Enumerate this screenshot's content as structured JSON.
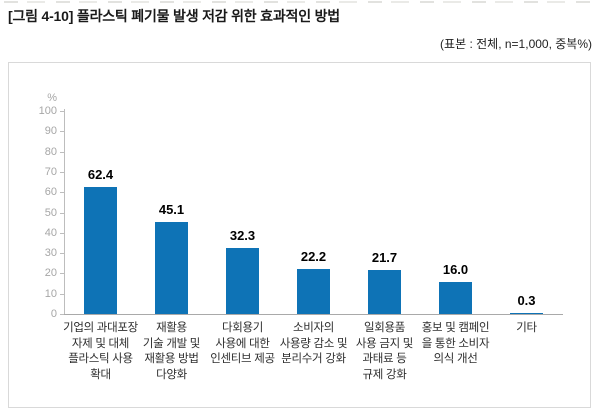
{
  "figure": {
    "title": "[그림 4-10] 플라스틱 폐기물 발생 저감 위한 효과적인 방법",
    "subtitle": "(표본 : 전체, n=1,000, 중복%)"
  },
  "chart_data": {
    "type": "bar",
    "title": "",
    "xlabel": "",
    "ylabel": "%",
    "ylim": [
      0,
      100
    ],
    "ytick_interval": 10,
    "yticks": [
      0,
      10,
      20,
      30,
      40,
      50,
      60,
      70,
      80,
      90,
      100
    ],
    "grid": false,
    "legend": "none",
    "categories": [
      [
        "기업의 과대포장",
        "자제 및 대체",
        "플라스틱 사용",
        "확대"
      ],
      [
        "재활용",
        "기술 개발 및",
        "재활용 방법",
        "다양화"
      ],
      [
        "다회용기",
        "사용에 대한",
        "인센티브 제공"
      ],
      [
        "소비자의",
        "사용량 감소 및",
        "분리수거 강화"
      ],
      [
        "일회용품",
        "사용 금지 및",
        "과태료 등",
        "규제 강화"
      ],
      [
        "홍보 및 캠페인",
        "을 통한 소비자",
        "의식 개선"
      ],
      [
        "기타"
      ]
    ],
    "values": [
      62.4,
      45.1,
      32.3,
      22.2,
      21.7,
      16.0,
      0.3
    ],
    "value_labels": [
      "62.4",
      "45.1",
      "32.3",
      "22.2",
      "21.7",
      "16.0",
      "0.3"
    ],
    "colors": {
      "bar": "#0e73b6",
      "axis_line": "#bdbdbd",
      "baseline": "#a9a9a9",
      "tick_label": "#a6a6a6",
      "value_label": "#000000",
      "category_label": "#2e2e2e",
      "panel_border": "#d9d9d9"
    }
  }
}
